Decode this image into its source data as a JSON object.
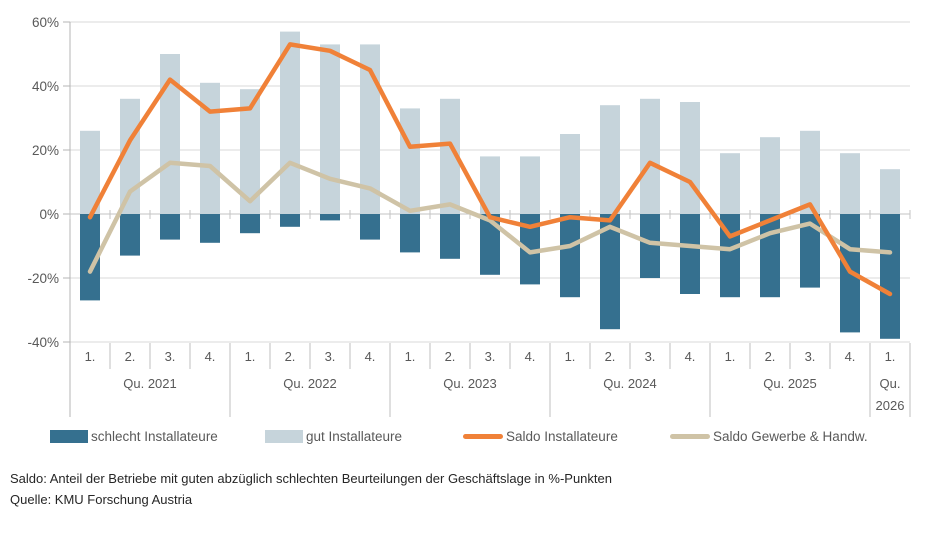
{
  "chart_data": {
    "type": "combo-bar-line",
    "title": "",
    "xlabel": "",
    "ylabel": "",
    "ylim": [
      -40,
      60
    ],
    "grid": true,
    "legend_position": "bottom",
    "yticks": [
      {
        "value": 60,
        "label": "60%"
      },
      {
        "value": 40,
        "label": "40%"
      },
      {
        "value": 20,
        "label": "20%"
      },
      {
        "value": 0,
        "label": "0%"
      },
      {
        "value": -20,
        "label": "-20%"
      },
      {
        "value": -40,
        "label": "-40%"
      }
    ],
    "x_groups": [
      {
        "label_lines": [
          "Qu. 2021"
        ],
        "quarters": [
          "1.",
          "2.",
          "3.",
          "4."
        ]
      },
      {
        "label_lines": [
          "Qu. 2022"
        ],
        "quarters": [
          "1.",
          "2.",
          "3.",
          "4."
        ]
      },
      {
        "label_lines": [
          "Qu. 2023"
        ],
        "quarters": [
          "1.",
          "2.",
          "3.",
          "4."
        ]
      },
      {
        "label_lines": [
          "Qu. 2024"
        ],
        "quarters": [
          "1.",
          "2.",
          "3.",
          "4."
        ]
      },
      {
        "label_lines": [
          "Qu. 2025"
        ],
        "quarters": [
          "1.",
          "2.",
          "3.",
          "4."
        ]
      },
      {
        "label_lines": [
          "Qu.",
          "2026"
        ],
        "quarters": [
          "1."
        ]
      }
    ],
    "series": [
      {
        "name": "schlecht Installateure",
        "type": "bar",
        "color": "#35708f",
        "values": [
          -27,
          -13,
          -8,
          -9,
          -6,
          -4,
          -2,
          -8,
          -12,
          -14,
          -19,
          -22,
          -26,
          -36,
          -20,
          -25,
          -26,
          -26,
          -23,
          -37,
          -39
        ]
      },
      {
        "name": "gut Installateure",
        "type": "bar",
        "color": "#c6d4db",
        "values": [
          26,
          36,
          50,
          41,
          39,
          57,
          53,
          53,
          33,
          36,
          18,
          18,
          25,
          34,
          36,
          35,
          19,
          24,
          26,
          19,
          14
        ]
      },
      {
        "name": "Saldo Installateure",
        "type": "line",
        "color": "#f08138",
        "values": [
          -1,
          23,
          42,
          32,
          33,
          53,
          51,
          45,
          21,
          22,
          -1,
          -4,
          -1,
          -2,
          16,
          10,
          -7,
          -2,
          3,
          -18,
          -25
        ]
      },
      {
        "name": "Saldo Gewerbe & Handw.",
        "type": "line",
        "color": "#cfc3a6",
        "values": [
          -18,
          7,
          16,
          15,
          4,
          16,
          11,
          8,
          1,
          3,
          -2,
          -12,
          -10,
          -4,
          -9,
          -10,
          -11,
          -6,
          -3,
          -11,
          -12
        ]
      }
    ]
  },
  "legend": [
    {
      "label": "schlecht Installateure",
      "swatch": "bar",
      "color": "#35708f"
    },
    {
      "label": "gut Installateure",
      "swatch": "bar",
      "color": "#c6d4db"
    },
    {
      "label": "Saldo Installateure",
      "swatch": "line",
      "color": "#f08138"
    },
    {
      "label": "Saldo Gewerbe & Handw.",
      "swatch": "line",
      "color": "#cfc3a6"
    }
  ],
  "footer": {
    "saldo_note": "Saldo: Anteil der Betriebe mit guten abzüglich schlechten Beurteilungen der Geschäftslage in %-Punkten",
    "source": "Quelle: KMU Forschung Austria"
  }
}
